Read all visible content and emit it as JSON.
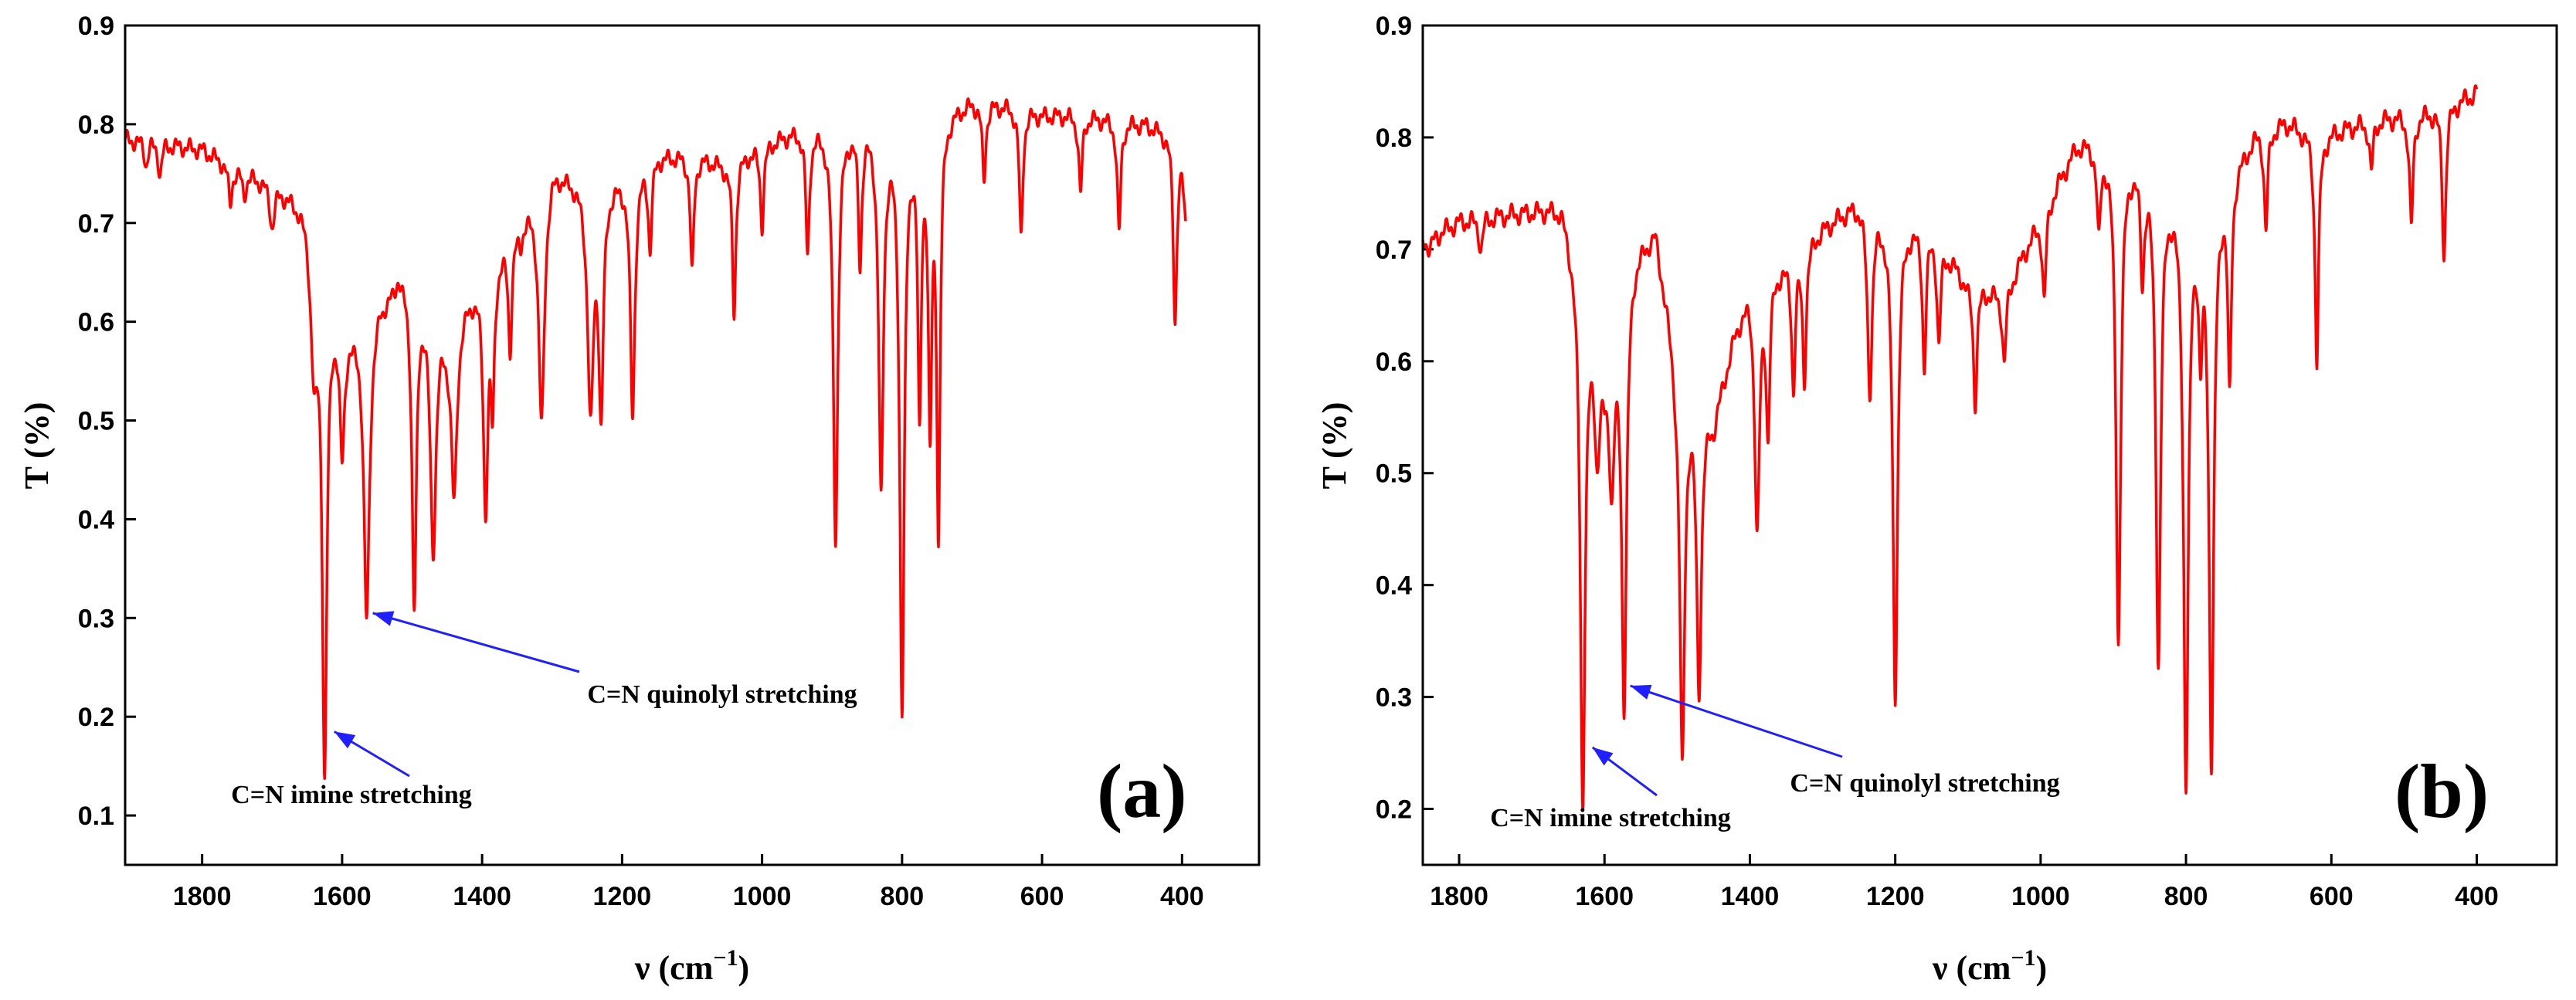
{
  "chart_data": [
    {
      "type": "line",
      "panel": "(a)",
      "xlabel": "ν (cm⁻¹)",
      "ylabel": "T (%)",
      "xlim": [
        1910,
        290
      ],
      "ylim": [
        0.05,
        0.9
      ],
      "xticks": [
        1800,
        1600,
        1400,
        1200,
        1000,
        800,
        600,
        400
      ],
      "yticks": [
        0.1,
        0.2,
        0.3,
        0.4,
        0.5,
        0.6,
        0.7,
        0.8,
        0.9
      ],
      "series": [
        {
          "name": "spectrum-a",
          "color": "#ff0000",
          "baseline": [
            [
              1910,
              0.785
            ],
            [
              1850,
              0.78
            ],
            [
              1800,
              0.775
            ],
            [
              1750,
              0.755
            ],
            [
              1700,
              0.74
            ],
            [
              1650,
              0.72
            ],
            [
              1600,
              0.6
            ],
            [
              1550,
              0.62
            ],
            [
              1500,
              0.66
            ],
            [
              1450,
              0.6
            ],
            [
              1400,
              0.65
            ],
            [
              1350,
              0.7
            ],
            [
              1300,
              0.76
            ],
            [
              1250,
              0.74
            ],
            [
              1200,
              0.75
            ],
            [
              1150,
              0.77
            ],
            [
              1100,
              0.77
            ],
            [
              1050,
              0.76
            ],
            [
              1000,
              0.78
            ],
            [
              950,
              0.795
            ],
            [
              900,
              0.8
            ],
            [
              850,
              0.805
            ],
            [
              800,
              0.805
            ],
            [
              750,
              0.81
            ],
            [
              700,
              0.825
            ],
            [
              650,
              0.82
            ],
            [
              600,
              0.81
            ],
            [
              550,
              0.81
            ],
            [
              500,
              0.805
            ],
            [
              450,
              0.8
            ],
            [
              420,
              0.79
            ],
            [
              400,
              0.76
            ],
            [
              395,
              0.705
            ]
          ],
          "bands": [
            [
              1880,
              0.76,
              3
            ],
            [
              1860,
              0.75,
              3
            ],
            [
              1760,
              0.72,
              3
            ],
            [
              1740,
              0.73,
              3
            ],
            [
              1700,
              0.7,
              4
            ],
            [
              1640,
              0.56,
              6
            ],
            [
              1625,
              0.16,
              4
            ],
            [
              1600,
              0.48,
              4
            ],
            [
              1585,
              0.6,
              4
            ],
            [
              1565,
              0.305,
              5
            ],
            [
              1545,
              0.63,
              4
            ],
            [
              1520,
              0.66,
              4
            ],
            [
              1497,
              0.32,
              4
            ],
            [
              1470,
              0.38,
              5
            ],
            [
              1440,
              0.43,
              5
            ],
            [
              1395,
              0.42,
              4
            ],
            [
              1385,
              0.53,
              3
            ],
            [
              1360,
              0.58,
              3
            ],
            [
              1345,
              0.69,
              3
            ],
            [
              1315,
              0.5,
              5
            ],
            [
              1245,
              0.515,
              5
            ],
            [
              1230,
              0.52,
              4
            ],
            [
              1185,
              0.51,
              4
            ],
            [
              1160,
              0.68,
              3
            ],
            [
              1100,
              0.65,
              3
            ],
            [
              1040,
              0.61,
              3
            ],
            [
              1000,
              0.7,
              3
            ],
            [
              935,
              0.67,
              3
            ],
            [
              895,
              0.385,
              4
            ],
            [
              860,
              0.67,
              3
            ],
            [
              830,
              0.435,
              4
            ],
            [
              800,
              0.22,
              4
            ],
            [
              775,
              0.52,
              3
            ],
            [
              760,
              0.51,
              3
            ],
            [
              748,
              0.4,
              3
            ],
            [
              683,
              0.745,
              3
            ],
            [
              630,
              0.685,
              3
            ],
            [
              545,
              0.73,
              3
            ],
            [
              490,
              0.69,
              3
            ],
            [
              410,
              0.6,
              3
            ]
          ]
        }
      ],
      "annotations": [
        {
          "text": "C=N quinolyl stretching",
          "peak_x": 1565,
          "peak_y": 0.305
        },
        {
          "text": "C=N imine stretching",
          "peak_x": 1620,
          "peak_y": 0.185
        }
      ]
    },
    {
      "type": "line",
      "panel": "(b)",
      "xlabel": "ν (cm⁻¹)",
      "ylabel": "T (%)",
      "xlim": [
        1850,
        290
      ],
      "ylim": [
        0.15,
        0.9
      ],
      "xticks": [
        1800,
        1600,
        1400,
        1200,
        1000,
        800,
        600,
        400
      ],
      "yticks": [
        0.2,
        0.3,
        0.4,
        0.5,
        0.6,
        0.7,
        0.8,
        0.9
      ],
      "series": [
        {
          "name": "spectrum-b",
          "color": "#ff0000",
          "baseline": [
            [
              1850,
              0.71
            ],
            [
              1840,
              0.71
            ],
            [
              1800,
              0.725
            ],
            [
              1750,
              0.73
            ],
            [
              1700,
              0.735
            ],
            [
              1660,
              0.74
            ],
            [
              1640,
              0.7
            ],
            [
              1600,
              0.6
            ],
            [
              1560,
              0.7
            ],
            [
              1530,
              0.72
            ],
            [
              1500,
              0.6
            ],
            [
              1450,
              0.55
            ],
            [
              1420,
              0.63
            ],
            [
              1400,
              0.67
            ],
            [
              1350,
              0.69
            ],
            [
              1300,
              0.72
            ],
            [
              1250,
              0.745
            ],
            [
              1200,
              0.73
            ],
            [
              1150,
              0.72
            ],
            [
              1100,
              0.67
            ],
            [
              1050,
              0.66
            ],
            [
              1000,
              0.73
            ],
            [
              950,
              0.795
            ],
            [
              920,
              0.8
            ],
            [
              900,
              0.795
            ],
            [
              850,
              0.78
            ],
            [
              800,
              0.75
            ],
            [
              760,
              0.76
            ],
            [
              720,
              0.79
            ],
            [
              700,
              0.81
            ],
            [
              660,
              0.815
            ],
            [
              620,
              0.8
            ],
            [
              600,
              0.805
            ],
            [
              550,
              0.815
            ],
            [
              500,
              0.82
            ],
            [
              450,
              0.825
            ],
            [
              400,
              0.84
            ]
          ],
          "bands": [
            [
              1840,
              0.7,
              4
            ],
            [
              1770,
              0.7,
              3
            ],
            [
              1630,
              0.21,
              4
            ],
            [
              1610,
              0.53,
              4
            ],
            [
              1590,
              0.5,
              4
            ],
            [
              1573,
              0.3,
              4
            ],
            [
              1493,
              0.245,
              4
            ],
            [
              1470,
              0.315,
              4
            ],
            [
              1390,
              0.45,
              4
            ],
            [
              1375,
              0.545,
              3
            ],
            [
              1340,
              0.58,
              3
            ],
            [
              1325,
              0.59,
              3
            ],
            [
              1235,
              0.58,
              4
            ],
            [
              1200,
              0.305,
              4
            ],
            [
              1160,
              0.6,
              3
            ],
            [
              1140,
              0.62,
              3
            ],
            [
              1090,
              0.565,
              3
            ],
            [
              1050,
              0.6,
              3
            ],
            [
              995,
              0.655,
              3
            ],
            [
              920,
              0.72,
              3
            ],
            [
              893,
              0.355,
              4
            ],
            [
              860,
              0.69,
              3
            ],
            [
              838,
              0.34,
              4
            ],
            [
              800,
              0.235,
              4
            ],
            [
              780,
              0.64,
              3
            ],
            [
              765,
              0.255,
              4
            ],
            [
              740,
              0.585,
              3
            ],
            [
              690,
              0.72,
              3
            ],
            [
              620,
              0.6,
              3
            ],
            [
              545,
              0.77,
              3
            ],
            [
              490,
              0.72,
              3
            ],
            [
              445,
              0.695,
              3
            ]
          ]
        }
      ],
      "annotations": [
        {
          "text": "C=N imine stretching",
          "peak_x": 1625,
          "peak_y": 0.255
        },
        {
          "text": "C=N quinolyl stretching",
          "peak_x": 1573,
          "peak_y": 0.31
        }
      ]
    }
  ],
  "panels": [
    {
      "label": "(a)",
      "xlabel": "ν (cm",
      "xlabel_sup": "−1",
      "xlabel_close": ")",
      "ylabel": "T (%)",
      "annot1": "C=N quinolyl stretching",
      "annot2": "C=N imine stretching"
    },
    {
      "label": "(b)",
      "xlabel": "ν (cm",
      "xlabel_sup": "−1",
      "xlabel_close": ")",
      "ylabel": "T (%)",
      "annot1": "C=N imine stretching",
      "annot2": "C=N quinolyl stretching"
    }
  ]
}
